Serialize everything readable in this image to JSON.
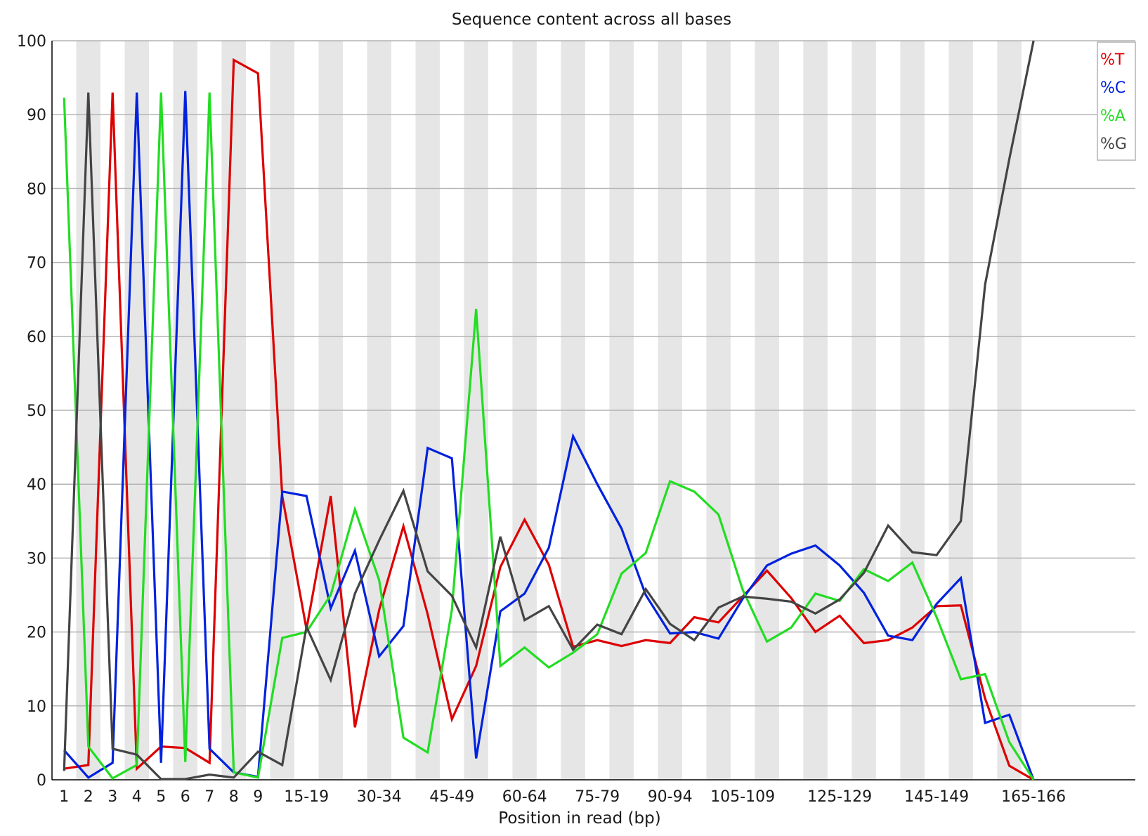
{
  "chart_data": {
    "type": "line",
    "title": "Sequence content across all bases",
    "xlabel": "Position in read (bp)",
    "ylabel": "",
    "ylim": [
      0,
      100
    ],
    "y_ticks": [
      0,
      10,
      20,
      30,
      40,
      50,
      60,
      70,
      80,
      90,
      100
    ],
    "grid": true,
    "legend_position": "top-right",
    "categories": [
      "1",
      "2",
      "3",
      "4",
      "5",
      "6",
      "7",
      "8",
      "9",
      "10-14",
      "15-19",
      "20-24",
      "25-29",
      "30-34",
      "35-39",
      "40-44",
      "45-49",
      "50-54",
      "55-59",
      "60-64",
      "65-69",
      "70-74",
      "75-79",
      "80-84",
      "85-89",
      "90-94",
      "95-99",
      "100-104",
      "105-109",
      "110-114",
      "115-119",
      "120-124",
      "125-129",
      "130-134",
      "135-139",
      "140-144",
      "145-149",
      "150-154",
      "155-159",
      "160-164",
      "165-166"
    ],
    "x_tick_labels": [
      "1",
      "2",
      "3",
      "4",
      "5",
      "6",
      "7",
      "8",
      "9",
      "",
      "15-19",
      "",
      "",
      "30-34",
      "",
      "",
      "45-49",
      "",
      "",
      "60-64",
      "",
      "",
      "75-79",
      "",
      "",
      "90-94",
      "",
      "",
      "105-109",
      "",
      "",
      "",
      "125-129",
      "",
      "",
      "",
      "145-149",
      "",
      "",
      "",
      "165-166"
    ],
    "series": [
      {
        "name": "%T",
        "color": "#dd0000",
        "values": [
          1.5,
          2.0,
          93.0,
          1.5,
          4.5,
          4.3,
          2.3,
          97.4,
          95.6,
          38.4,
          20.4,
          38.4,
          7.1,
          23.0,
          34.3,
          22.4,
          8.2,
          15.4,
          28.8,
          35.2,
          29.1,
          18.0,
          18.9,
          18.1,
          18.9,
          18.5,
          22.0,
          21.3,
          24.8,
          28.3,
          24.6,
          20.0,
          22.2,
          18.5,
          18.9,
          20.6,
          23.5,
          23.6,
          11.0,
          1.9,
          0.0
        ]
      },
      {
        "name": "%C",
        "color": "#0022dd",
        "values": [
          4.0,
          0.3,
          2.3,
          93.0,
          2.3,
          93.2,
          4.2,
          1.0,
          0.4,
          39.0,
          38.4,
          23.2,
          31.0,
          16.7,
          20.8,
          44.9,
          43.5,
          2.9,
          22.8,
          25.2,
          31.4,
          46.5,
          40.0,
          34.0,
          25.0,
          19.8,
          20.0,
          19.1,
          24.5,
          29.0,
          30.6,
          31.7,
          29.0,
          25.3,
          19.5,
          18.9,
          23.8,
          27.3,
          7.7,
          8.8,
          0.0
        ]
      },
      {
        "name": "%A",
        "color": "#22dd22",
        "values": [
          92.3,
          4.5,
          0.2,
          2.0,
          93.0,
          2.4,
          93.0,
          1.0,
          0.3,
          19.2,
          20.0,
          25.0,
          36.6,
          27.0,
          5.7,
          3.7,
          23.0,
          63.7,
          15.4,
          17.9,
          15.2,
          17.2,
          19.7,
          27.9,
          30.7,
          40.4,
          39.0,
          35.9,
          25.7,
          18.7,
          20.6,
          25.2,
          24.2,
          28.5,
          26.9,
          29.4,
          22.0,
          13.6,
          14.3,
          5.1,
          0.0
        ]
      },
      {
        "name": "%G",
        "color": "#444444",
        "values": [
          1.2,
          93.0,
          4.2,
          3.4,
          0.1,
          0.1,
          0.7,
          0.3,
          3.8,
          2.0,
          20.7,
          13.5,
          25.2,
          32.4,
          39.1,
          28.2,
          24.9,
          17.9,
          32.9,
          21.6,
          23.5,
          17.6,
          21.0,
          19.7,
          25.8,
          21.1,
          18.9,
          23.3,
          24.8,
          24.5,
          24.1,
          22.5,
          24.4,
          28.0,
          34.4,
          30.8,
          30.4,
          35.0,
          67.0,
          84.0,
          100.0
        ]
      }
    ]
  }
}
